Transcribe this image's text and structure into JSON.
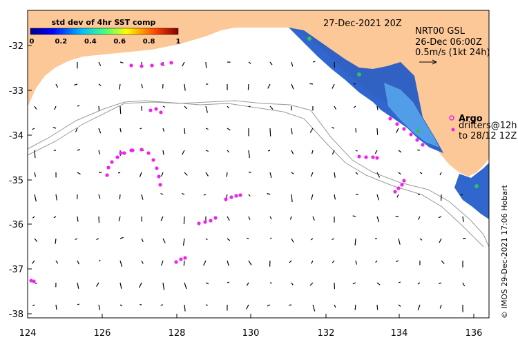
{
  "header": {
    "date": "27-Dec-2021 20Z",
    "product": "NRT00 GSL",
    "product_time": "26-Dec 06:00Z",
    "scale_text": "0.5m/s (1kt 24h)"
  },
  "colorbar": {
    "title": "std dev of 4hr SST comp",
    "ticks": [
      "0",
      "0.2",
      "0.4",
      "0.6",
      "0.8",
      "1"
    ],
    "min": 0,
    "max": 1
  },
  "legend": {
    "argo": "Argo",
    "drifters_line1": "drifters@12h",
    "drifters_line2": "to 28/12 12Z"
  },
  "axes": {
    "x_ticks": [
      "124",
      "126",
      "128",
      "130",
      "132",
      "134",
      "136"
    ],
    "y_ticks": [
      "-32",
      "-33",
      "-34",
      "-35",
      "-36",
      "-37",
      "-38"
    ],
    "lon_range": [
      124,
      136.5
    ],
    "lat_range": [
      -38.1,
      -31.3
    ]
  },
  "credit": "© IMOS 29-Dec-2021 17:06 Hobart",
  "colors": {
    "land": "#fcc898",
    "drifter": "#ee22ee",
    "current_arrow": "#000000",
    "bathymetry": "#999999",
    "sst_low": "#0030a0",
    "sst_high": "#60c0ff"
  }
}
